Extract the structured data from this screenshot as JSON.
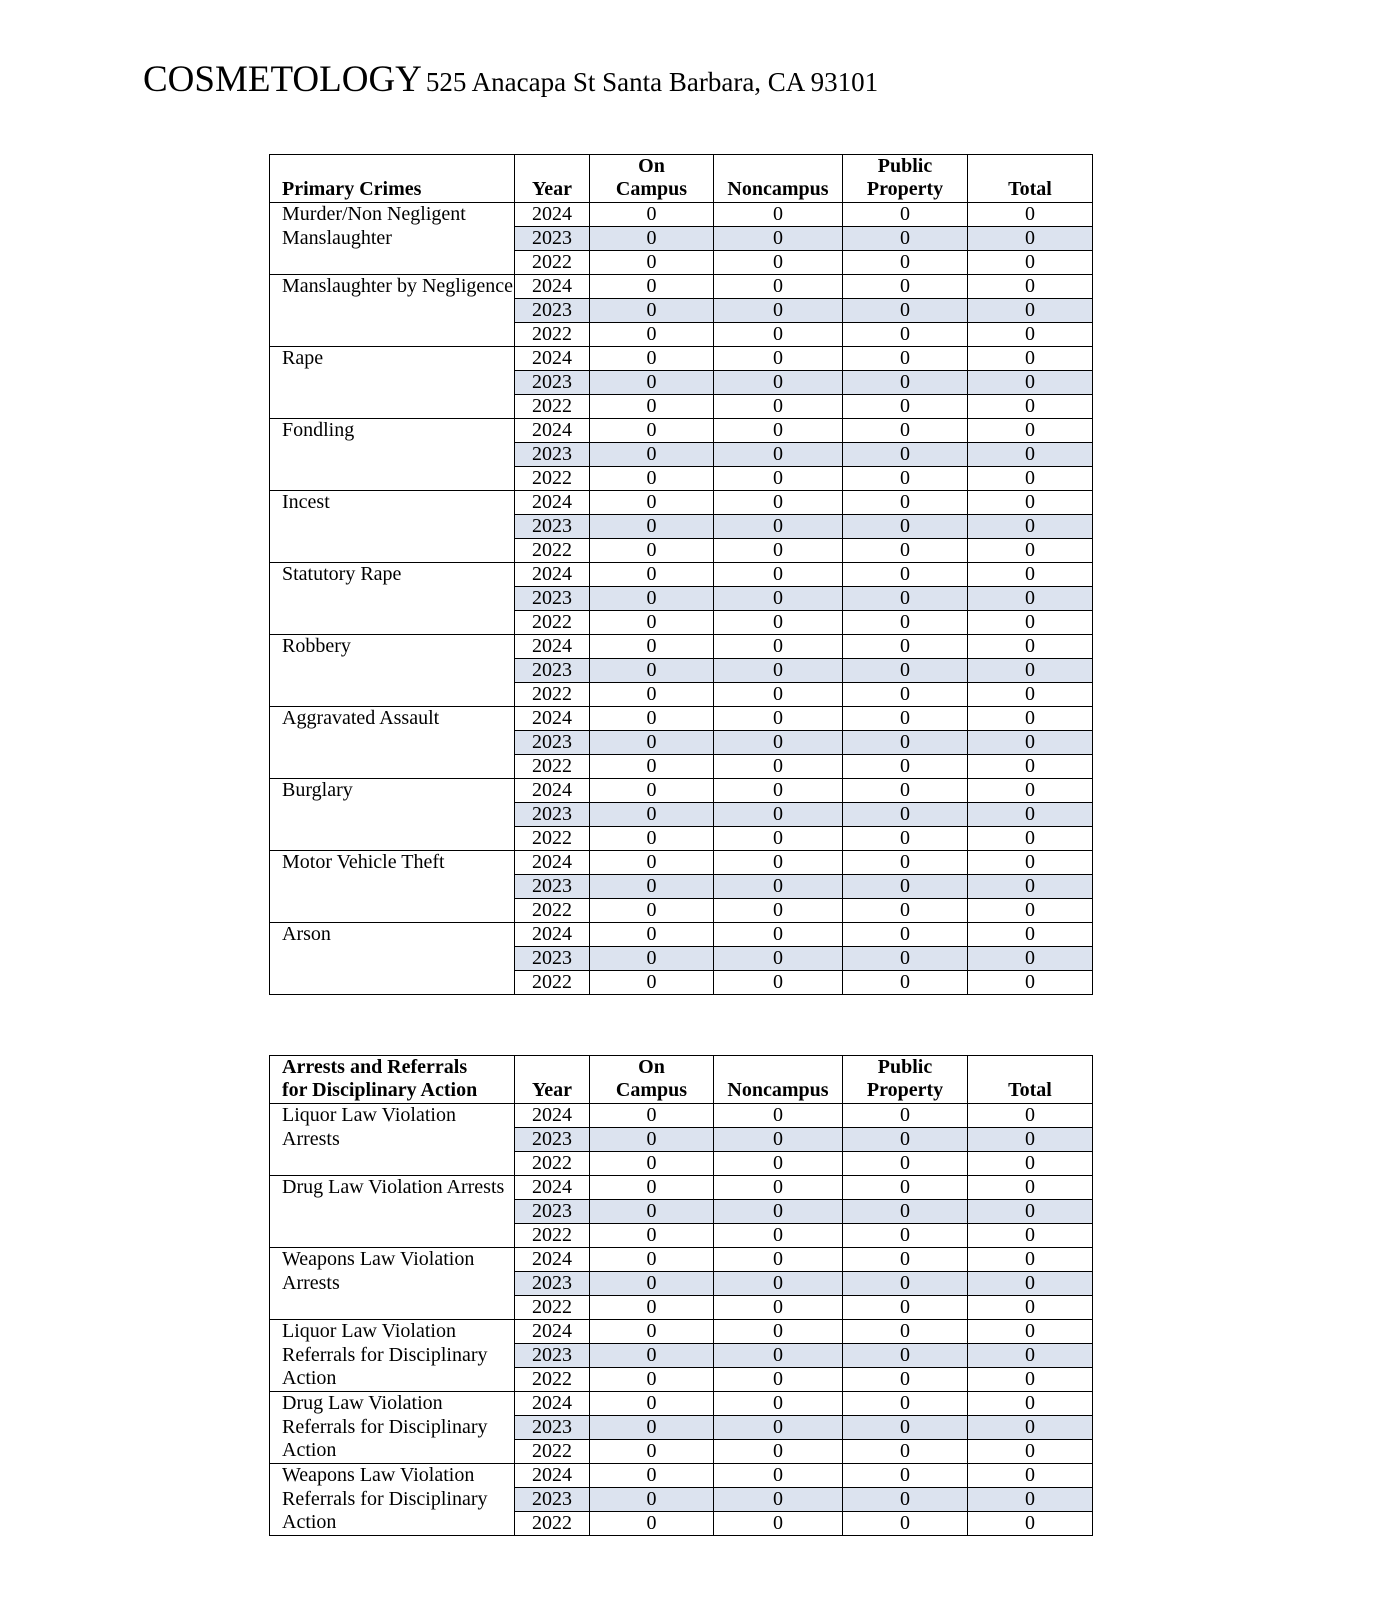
{
  "header": {
    "name": "COSMETOLOGY",
    "address": "525 Anacapa St Santa Barbara, CA 93101"
  },
  "colors": {
    "shade": "#dce3ef"
  },
  "tables": [
    {
      "headers": [
        "Primary Crimes",
        "Year",
        "On\nCampus",
        "Noncampus",
        "Public\nProperty",
        "Total"
      ],
      "categories": [
        {
          "label": "Murder/Non Negligent Manslaughter",
          "rows": [
            [
              "2024",
              "0",
              "0",
              "0",
              "0"
            ],
            [
              "2023",
              "0",
              "0",
              "0",
              "0"
            ],
            [
              "2022",
              "0",
              "0",
              "0",
              "0"
            ]
          ]
        },
        {
          "label": "Manslaughter by Negligence",
          "rows": [
            [
              "2024",
              "0",
              "0",
              "0",
              "0"
            ],
            [
              "2023",
              "0",
              "0",
              "0",
              "0"
            ],
            [
              "2022",
              "0",
              "0",
              "0",
              "0"
            ]
          ]
        },
        {
          "label": "Rape",
          "rows": [
            [
              "2024",
              "0",
              "0",
              "0",
              "0"
            ],
            [
              "2023",
              "0",
              "0",
              "0",
              "0"
            ],
            [
              "2022",
              "0",
              "0",
              "0",
              "0"
            ]
          ]
        },
        {
          "label": "Fondling",
          "rows": [
            [
              "2024",
              "0",
              "0",
              "0",
              "0"
            ],
            [
              "2023",
              "0",
              "0",
              "0",
              "0"
            ],
            [
              "2022",
              "0",
              "0",
              "0",
              "0"
            ]
          ]
        },
        {
          "label": "Incest",
          "rows": [
            [
              "2024",
              "0",
              "0",
              "0",
              "0"
            ],
            [
              "2023",
              "0",
              "0",
              "0",
              "0"
            ],
            [
              "2022",
              "0",
              "0",
              "0",
              "0"
            ]
          ]
        },
        {
          "label": "Statutory Rape",
          "rows": [
            [
              "2024",
              "0",
              "0",
              "0",
              "0"
            ],
            [
              "2023",
              "0",
              "0",
              "0",
              "0"
            ],
            [
              "2022",
              "0",
              "0",
              "0",
              "0"
            ]
          ]
        },
        {
          "label": "Robbery",
          "rows": [
            [
              "2024",
              "0",
              "0",
              "0",
              "0"
            ],
            [
              "2023",
              "0",
              "0",
              "0",
              "0"
            ],
            [
              "2022",
              "0",
              "0",
              "0",
              "0"
            ]
          ]
        },
        {
          "label": "Aggravated Assault",
          "rows": [
            [
              "2024",
              "0",
              "0",
              "0",
              "0"
            ],
            [
              "2023",
              "0",
              "0",
              "0",
              "0"
            ],
            [
              "2022",
              "0",
              "0",
              "0",
              "0"
            ]
          ]
        },
        {
          "label": "Burglary",
          "rows": [
            [
              "2024",
              "0",
              "0",
              "0",
              "0"
            ],
            [
              "2023",
              "0",
              "0",
              "0",
              "0"
            ],
            [
              "2022",
              "0",
              "0",
              "0",
              "0"
            ]
          ]
        },
        {
          "label": "Motor Vehicle Theft",
          "rows": [
            [
              "2024",
              "0",
              "0",
              "0",
              "0"
            ],
            [
              "2023",
              "0",
              "0",
              "0",
              "0"
            ],
            [
              "2022",
              "0",
              "0",
              "0",
              "0"
            ]
          ]
        },
        {
          "label": "Arson",
          "rows": [
            [
              "2024",
              "0",
              "0",
              "0",
              "0"
            ],
            [
              "2023",
              "0",
              "0",
              "0",
              "0"
            ],
            [
              "2022",
              "0",
              "0",
              "0",
              "0"
            ]
          ]
        }
      ]
    },
    {
      "headers": [
        "Arrests and Referrals\nfor Disciplinary Action",
        "Year",
        "On\nCampus",
        "Noncampus",
        "Public\nProperty",
        "Total"
      ],
      "categories": [
        {
          "label": "Liquor Law Violation Arrests",
          "rows": [
            [
              "2024",
              "0",
              "0",
              "0",
              "0"
            ],
            [
              "2023",
              "0",
              "0",
              "0",
              "0"
            ],
            [
              "2022",
              "0",
              "0",
              "0",
              "0"
            ]
          ]
        },
        {
          "label": "Drug Law Violation Arrests",
          "rows": [
            [
              "2024",
              "0",
              "0",
              "0",
              "0"
            ],
            [
              "2023",
              "0",
              "0",
              "0",
              "0"
            ],
            [
              "2022",
              "0",
              "0",
              "0",
              "0"
            ]
          ]
        },
        {
          "label": "Weapons Law Violation Arrests",
          "rows": [
            [
              "2024",
              "0",
              "0",
              "0",
              "0"
            ],
            [
              "2023",
              "0",
              "0",
              "0",
              "0"
            ],
            [
              "2022",
              "0",
              "0",
              "0",
              "0"
            ]
          ]
        },
        {
          "label": "Liquor Law Violation Referrals for Disciplinary Action",
          "rows": [
            [
              "2024",
              "0",
              "0",
              "0",
              "0"
            ],
            [
              "2023",
              "0",
              "0",
              "0",
              "0"
            ],
            [
              "2022",
              "0",
              "0",
              "0",
              "0"
            ]
          ]
        },
        {
          "label": "Drug Law Violation Referrals for Disciplinary Action",
          "rows": [
            [
              "2024",
              "0",
              "0",
              "0",
              "0"
            ],
            [
              "2023",
              "0",
              "0",
              "0",
              "0"
            ],
            [
              "2022",
              "0",
              "0",
              "0",
              "0"
            ]
          ]
        },
        {
          "label": "Weapons Law Violation Referrals for Disciplinary Action",
          "rows": [
            [
              "2024",
              "0",
              "0",
              "0",
              "0"
            ],
            [
              "2023",
              "0",
              "0",
              "0",
              "0"
            ],
            [
              "2022",
              "0",
              "0",
              "0",
              "0"
            ]
          ]
        }
      ]
    }
  ]
}
